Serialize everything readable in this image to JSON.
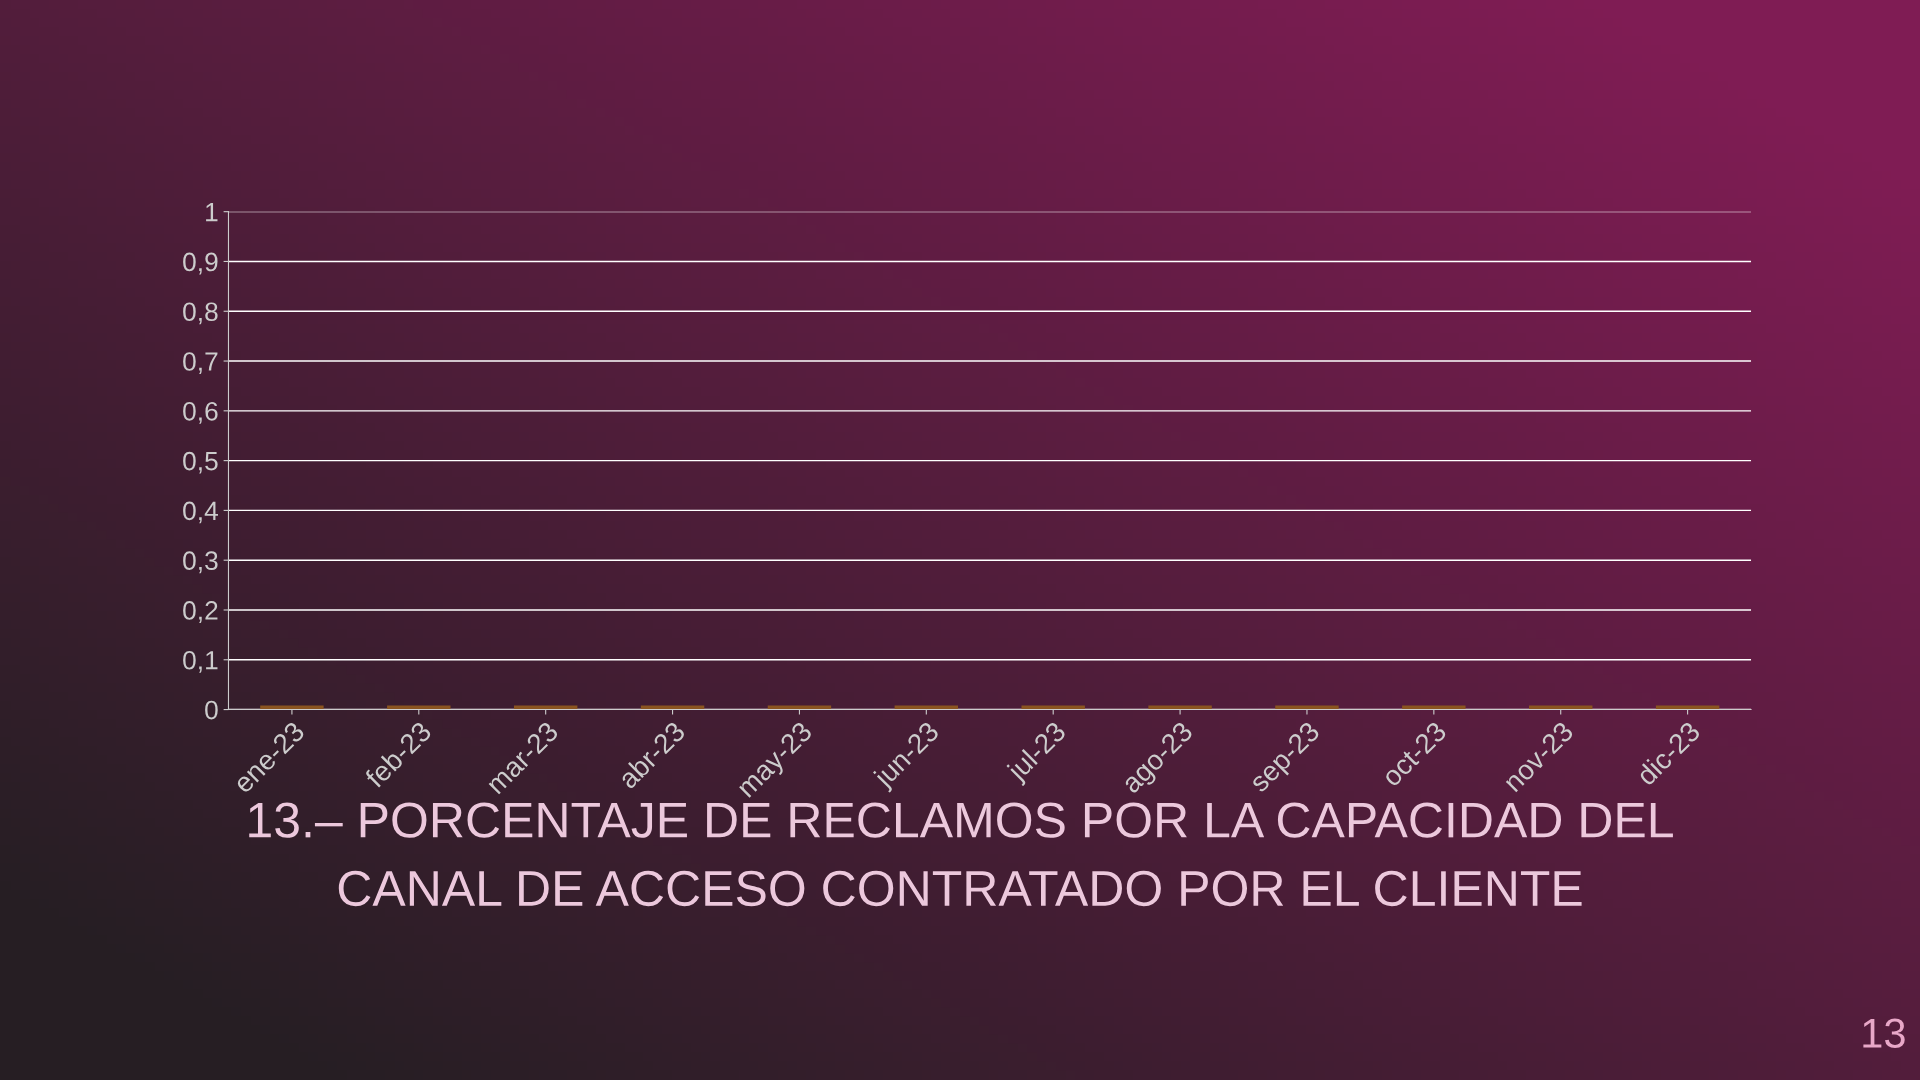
{
  "chart_data": {
    "type": "bar",
    "title": "13.– PORCENTAJE DE RECLAMOS POR LA CAPACIDAD DEL\nCANAL DE ACCESO CONTRATADO POR EL CLIENTE",
    "categories": [
      "ene-23",
      "feb-23",
      "mar-23",
      "abr-23",
      "may-23",
      "jun-23",
      "jul-23",
      "ago-23",
      "sep-23",
      "oct-23",
      "nov-23",
      "dic-23"
    ],
    "values": [
      0,
      0,
      0,
      0,
      0,
      0,
      0,
      0,
      0,
      0,
      0,
      0
    ],
    "color": "#8a5420",
    "ylim": [
      0,
      1
    ],
    "yticks": [
      0,
      {
        "value": 0.1,
        "label": "0,1"
      },
      {
        "value": 0.2,
        "label": "0,2"
      },
      {
        "value": 0.3,
        "label": "0,3"
      },
      {
        "value": 0.4,
        "label": "0,4"
      },
      {
        "value": 0.5,
        "label": "0,5"
      },
      {
        "value": 0.6,
        "label": "0,6"
      },
      {
        "value": 0.7,
        "label": "0,7"
      },
      {
        "value": 0.8,
        "label": "0,8"
      },
      {
        "value": 0.9,
        "label": "0,9"
      },
      1
    ],
    "grid": "y",
    "legend": false,
    "annotations": [
      "13"
    ]
  }
}
